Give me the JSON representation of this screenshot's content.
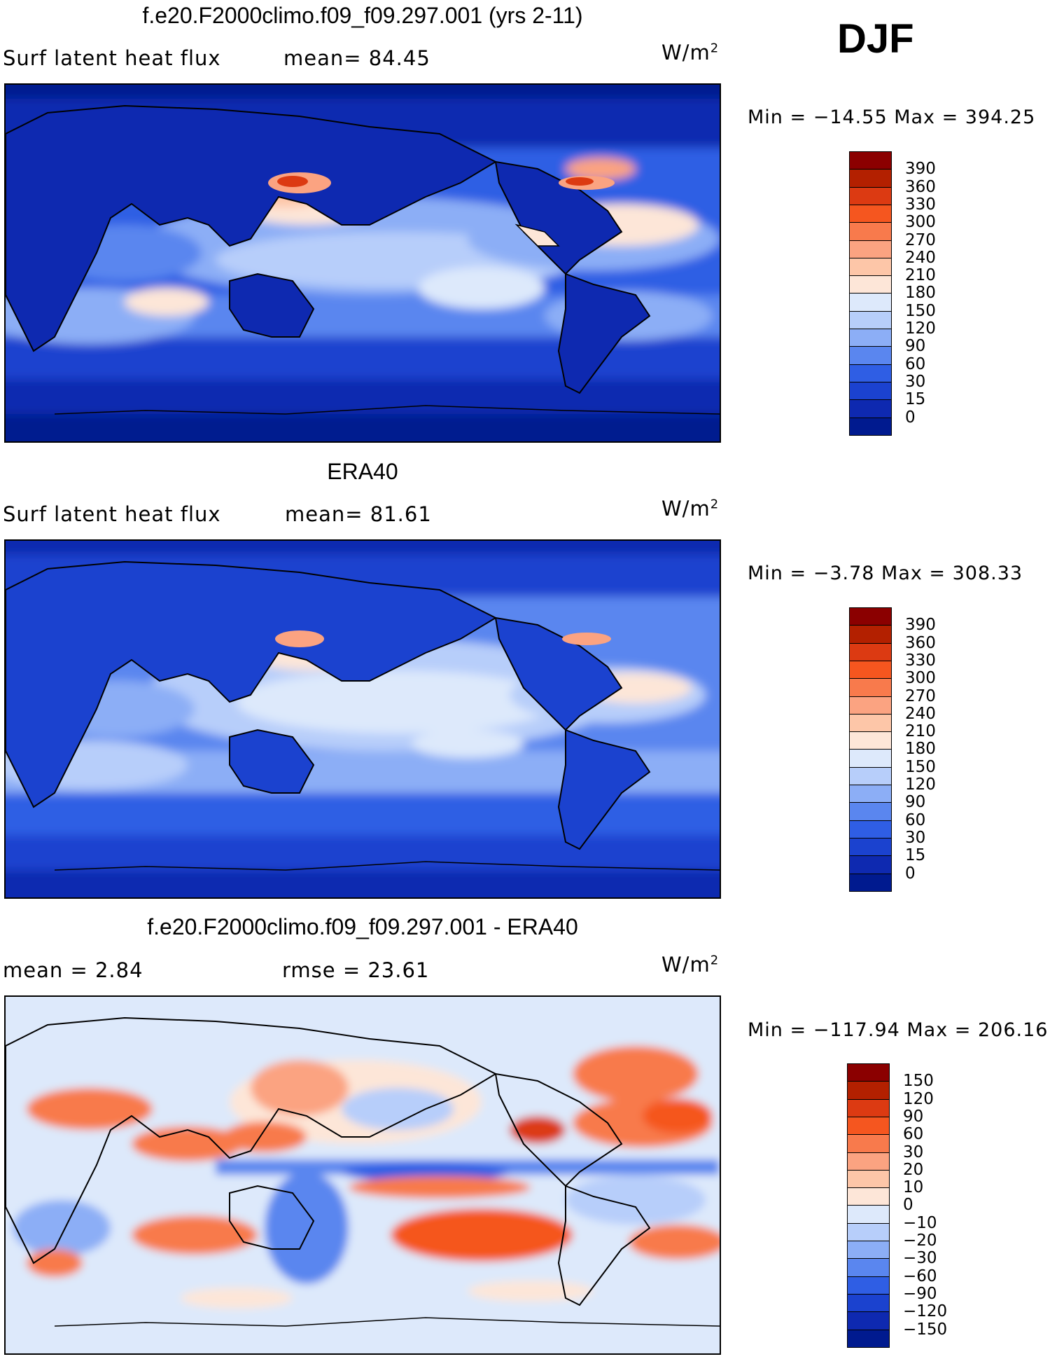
{
  "season": "DJF",
  "panels": [
    {
      "title": "f.e20.F2000climo.f09_f09.297.001 (yrs 2-11)",
      "left_label": "Surf  latent  heat  flux",
      "mean_text": "mean=   84.45",
      "units_base": "W/m",
      "units_sup": "2",
      "minmax": "Min  =  −14.55  Max  =  394.25",
      "legend_labels": [
        "390",
        "360",
        "330",
        "300",
        "270",
        "240",
        "210",
        "180",
        "150",
        "120",
        "90",
        "60",
        "30",
        "15",
        "0"
      ]
    },
    {
      "title": "ERA40",
      "left_label": "Surf  latent  heat  flux",
      "mean_text": "mean=   81.61",
      "units_base": "W/m",
      "units_sup": "2",
      "minmax": "Min  =    −3.78  Max  =  308.33",
      "legend_labels": [
        "390",
        "360",
        "330",
        "300",
        "270",
        "240",
        "210",
        "180",
        "150",
        "120",
        "90",
        "60",
        "30",
        "15",
        "0"
      ]
    },
    {
      "title": "f.e20.F2000climo.f09_f09.297.001 - ERA40",
      "left_label": "mean  =     2.84",
      "mean_text": "rmse  =     23.61",
      "units_base": "W/m",
      "units_sup": "2",
      "minmax": "Min  =  −117.94  Max  =  206.16",
      "legend_labels": [
        "150",
        "120",
        "90",
        "60",
        "30",
        "20",
        "10",
        "0",
        "−10",
        "−20",
        "−30",
        "−60",
        "−90",
        "−120",
        "−150"
      ]
    }
  ],
  "colors": {
    "abs_scale": [
      "#8b0000",
      "#b32000",
      "#dc3a12",
      "#f5561f",
      "#f87a4c",
      "#fba381",
      "#fdc6a8",
      "#fde6d8",
      "#dde9fb",
      "#b7cefa",
      "#8caef6",
      "#5a86ef",
      "#2f5ee4",
      "#1b42cf",
      "#0e29b0",
      "#001a8f"
    ],
    "diff_scale": [
      "#8b0000",
      "#b32000",
      "#dc3a12",
      "#f5561f",
      "#f87a4c",
      "#fba381",
      "#fdc6a8",
      "#fde6d8",
      "#dde9fb",
      "#b7cefa",
      "#8caef6",
      "#5a86ef",
      "#2f5ee4",
      "#1b42cf",
      "#0e29b0",
      "#001a8f"
    ]
  }
}
